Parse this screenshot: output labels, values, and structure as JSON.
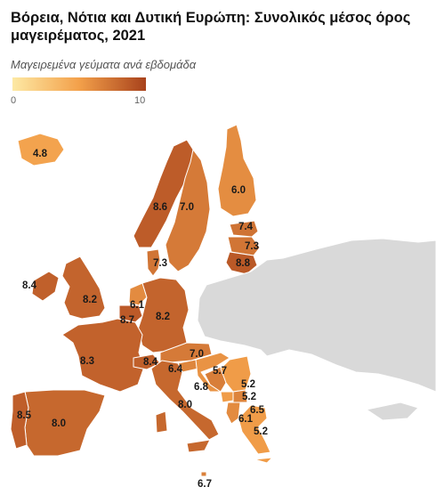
{
  "title": "Βόρεια, Νότια και Δυτική Ευρώπη: Συνολικός μέσος όρος μαγειρέματος, 2021",
  "legend": {
    "title": "Μαγειρεμένα γεύματα ανά εβδομάδα",
    "min_label": "0",
    "max_label": "10",
    "min_value": 0,
    "max_value": 10,
    "color_low": "#fde9a4",
    "color_mid": "#f3a04a",
    "color_high": "#a8421c"
  },
  "colors": {
    "no_data": "#d9d9d9",
    "border": "#ffffff"
  },
  "regions": [
    {
      "id": "iceland",
      "value": 4.8,
      "label": "4.8"
    },
    {
      "id": "norway",
      "value": 8.6,
      "label": "8.6"
    },
    {
      "id": "sweden",
      "value": 7.0,
      "label": "7.0"
    },
    {
      "id": "finland",
      "value": 6.0,
      "label": "6.0"
    },
    {
      "id": "estonia",
      "value": 7.4,
      "label": "7.4"
    },
    {
      "id": "latvia",
      "value": 7.3,
      "label": "7.3"
    },
    {
      "id": "lithuania",
      "value": 8.8,
      "label": "8.8"
    },
    {
      "id": "denmark",
      "value": 7.3,
      "label": "7.3"
    },
    {
      "id": "ireland",
      "value": 8.4,
      "label": "8.4"
    },
    {
      "id": "united-kingdom",
      "value": 8.2,
      "label": "8.2"
    },
    {
      "id": "netherlands",
      "value": 6.1,
      "label": "6.1"
    },
    {
      "id": "belgium",
      "value": 8.7,
      "label": "8.7"
    },
    {
      "id": "germany",
      "value": 8.2,
      "label": "8.2"
    },
    {
      "id": "france",
      "value": 8.3,
      "label": "8.3"
    },
    {
      "id": "switzerland",
      "value": 8.4,
      "label": "8.4"
    },
    {
      "id": "austria",
      "value": 7.0,
      "label": "7.0"
    },
    {
      "id": "slovenia",
      "value": 6.4,
      "label": "6.4"
    },
    {
      "id": "croatia",
      "value": 5.7,
      "label": "5.7"
    },
    {
      "id": "bosnia",
      "value": 6.8,
      "label": "6.8"
    },
    {
      "id": "serbia",
      "value": 5.2,
      "label": "5.2"
    },
    {
      "id": "montenegro",
      "value": 5.2,
      "label": "5.2"
    },
    {
      "id": "kosovo",
      "value": 6.5,
      "label": "6.5"
    },
    {
      "id": "albania",
      "value": 6.1,
      "label": "6.1"
    },
    {
      "id": "greece",
      "value": 5.2,
      "label": "5.2"
    },
    {
      "id": "italy",
      "value": 8.0,
      "label": "8.0"
    },
    {
      "id": "spain",
      "value": 8.0,
      "label": "8.0"
    },
    {
      "id": "portugal",
      "value": 8.5,
      "label": "8.5"
    },
    {
      "id": "malta",
      "value": 6.7,
      "label": "6.7"
    },
    {
      "id": "eastern-europe",
      "value": null,
      "label": ""
    }
  ]
}
